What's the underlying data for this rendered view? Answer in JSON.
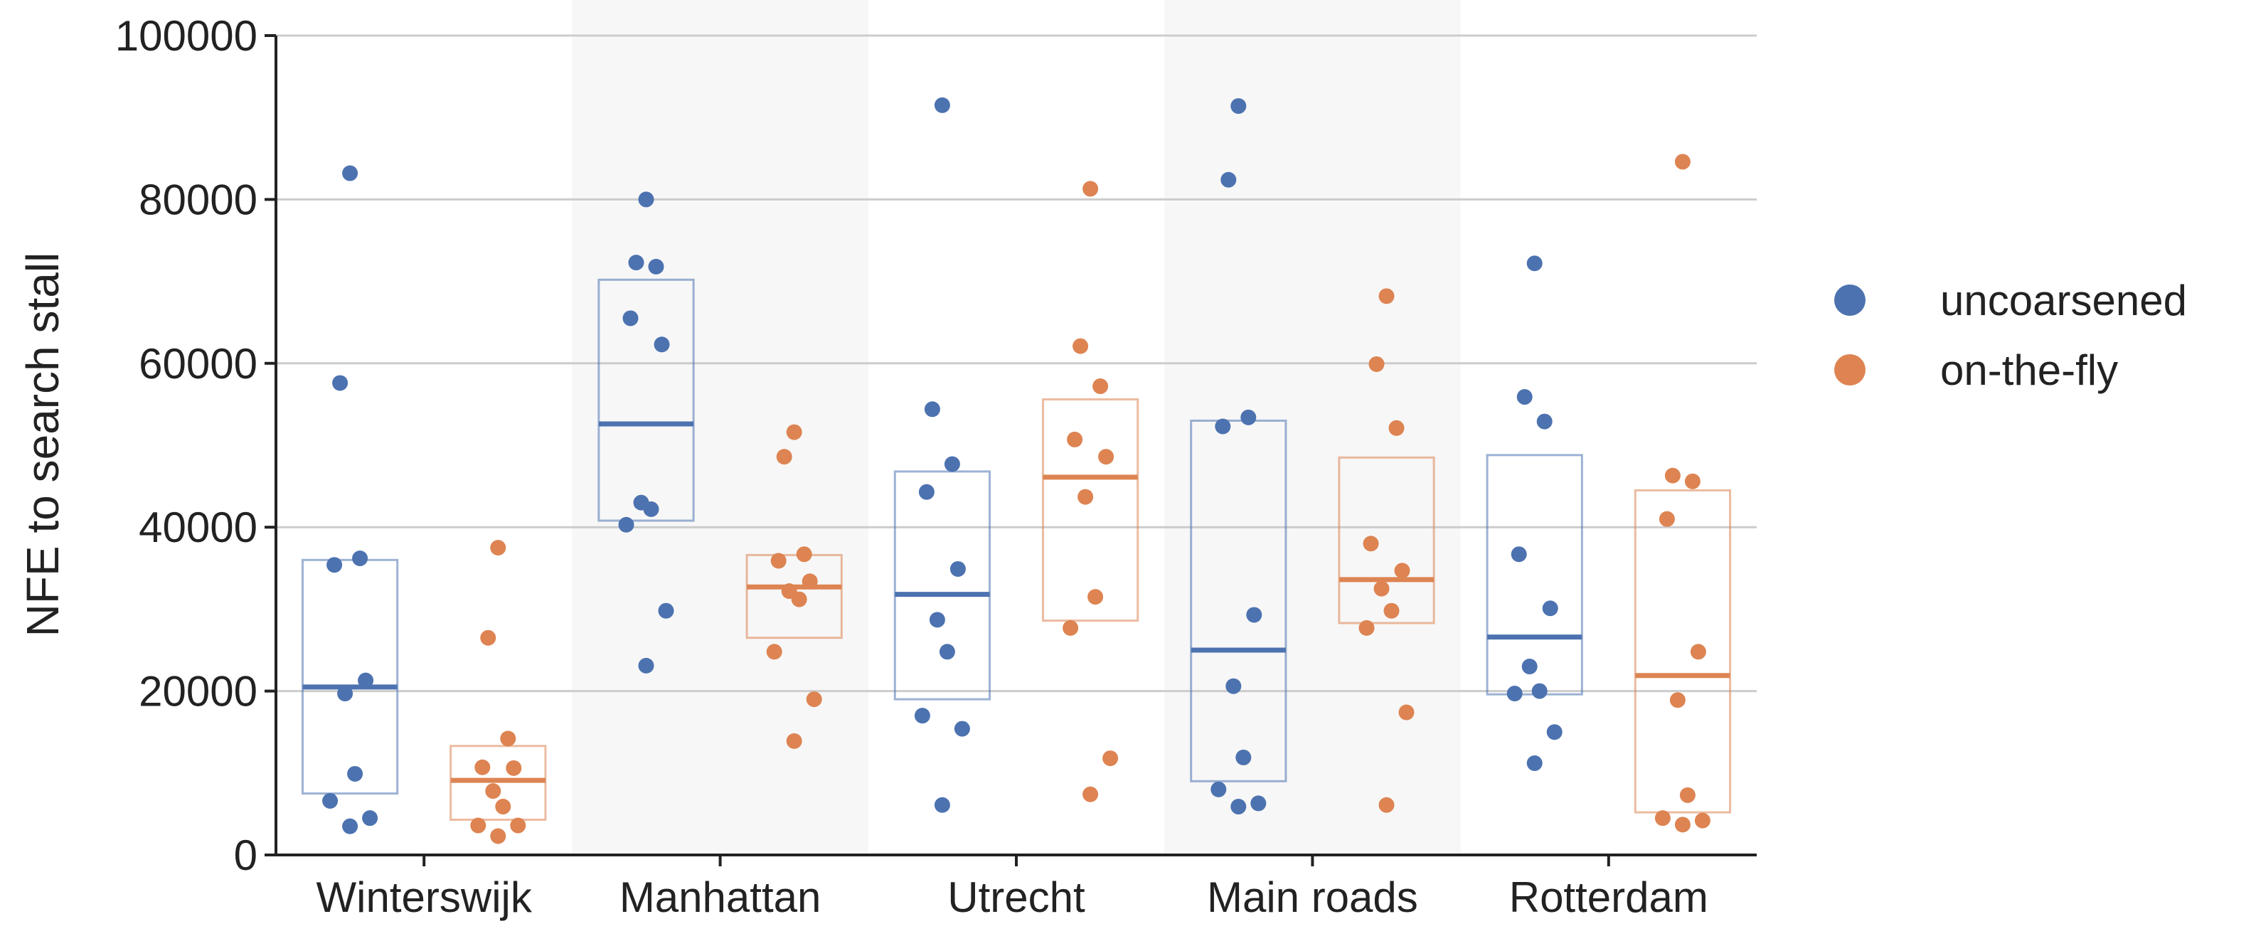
{
  "chart_data": {
    "type": "scatter",
    "ylabel": "NFE to search stall",
    "xlabel": "",
    "ylim": [
      0,
      100000
    ],
    "yticks": [
      0,
      20000,
      40000,
      60000,
      80000,
      100000
    ],
    "grid": "horizontal",
    "legend_position": "right",
    "categories": [
      "Winterswijk",
      "Manhattan",
      "Utrecht",
      "Main roads",
      "Rotterdam"
    ],
    "series": [
      {
        "name": "uncoarsened",
        "color": "#4c72b0",
        "points": [
          [
            83200,
            57600,
            36200,
            35400,
            21300,
            19700,
            9900,
            6600,
            4500,
            3500
          ],
          [
            80000,
            72300,
            71800,
            65500,
            62300,
            43000,
            42200,
            40300,
            29800,
            23100
          ],
          [
            91500,
            54400,
            47700,
            44300,
            34900,
            28700,
            24800,
            17000,
            15400,
            6100
          ],
          [
            91400,
            82400,
            53400,
            52300,
            29300,
            20600,
            11900,
            8000,
            6300,
            5900
          ],
          [
            72200,
            55900,
            52900,
            36700,
            30100,
            23000,
            20000,
            19700,
            15000,
            11200
          ]
        ],
        "box_low": [
          7500,
          40800,
          19000,
          9000,
          19600
        ],
        "box_high": [
          36000,
          70200,
          46800,
          53000,
          48800
        ],
        "median": [
          20500,
          52600,
          31800,
          25000,
          26600
        ]
      },
      {
        "name": "on-the-fly",
        "color": "#dd8452",
        "points": [
          [
            37500,
            26500,
            14200,
            10700,
            10600,
            7800,
            5900,
            3600,
            3600,
            2300
          ],
          [
            51600,
            48600,
            36700,
            35900,
            33400,
            32200,
            31200,
            24800,
            19000,
            13900
          ],
          [
            81300,
            62100,
            57200,
            50700,
            48600,
            43700,
            31500,
            27700,
            11800,
            7400
          ],
          [
            68200,
            59900,
            52100,
            38000,
            34700,
            32500,
            29800,
            27700,
            17400,
            6100
          ],
          [
            84600,
            46300,
            45600,
            41000,
            24800,
            18900,
            7300,
            4500,
            4200,
            3700
          ]
        ],
        "box_low": [
          4300,
          26500,
          28600,
          28300,
          5200
        ],
        "box_high": [
          13300,
          36600,
          55600,
          48500,
          44500
        ],
        "median": [
          9100,
          32700,
          46100,
          33600,
          21900
        ]
      }
    ]
  }
}
